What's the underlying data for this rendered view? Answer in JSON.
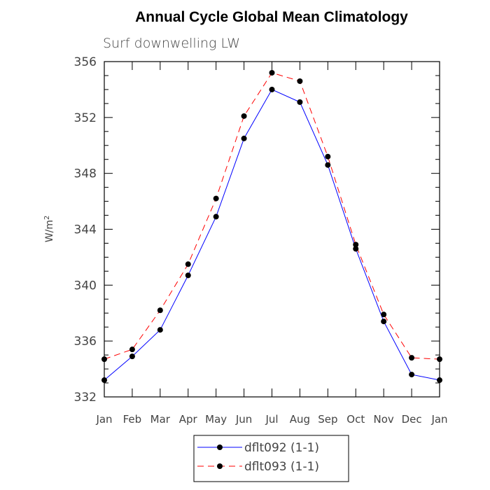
{
  "chart_data": {
    "type": "line",
    "title": "Annual Cycle Global Mean Climatology",
    "subtitle": "Surf downwelling LW",
    "ylabel": "W/m",
    "ylabel_superscript": "2",
    "xlabel": "",
    "ylim": [
      332,
      356
    ],
    "yticks": [
      332,
      336,
      340,
      344,
      348,
      352,
      356
    ],
    "grid": false,
    "legend_position": "bottom-center",
    "categories": [
      "Jan",
      "Feb",
      "Mar",
      "Apr",
      "May",
      "Jun",
      "Jul",
      "Aug",
      "Sep",
      "Oct",
      "Nov",
      "Dec",
      "Jan"
    ],
    "series": [
      {
        "name": "dflt092 (1-1)",
        "color": "#0000ff",
        "line_style": "solid",
        "values": [
          333.2,
          334.9,
          336.8,
          340.7,
          344.9,
          350.5,
          354.0,
          353.1,
          348.6,
          342.6,
          337.4,
          333.6,
          333.2
        ]
      },
      {
        "name": "dflt093 (1-1)",
        "color": "#ff0000",
        "line_style": "dashed",
        "values": [
          334.7,
          335.4,
          338.2,
          341.5,
          346.2,
          352.1,
          355.2,
          354.6,
          349.2,
          342.9,
          337.9,
          334.8,
          334.7
        ]
      }
    ]
  }
}
